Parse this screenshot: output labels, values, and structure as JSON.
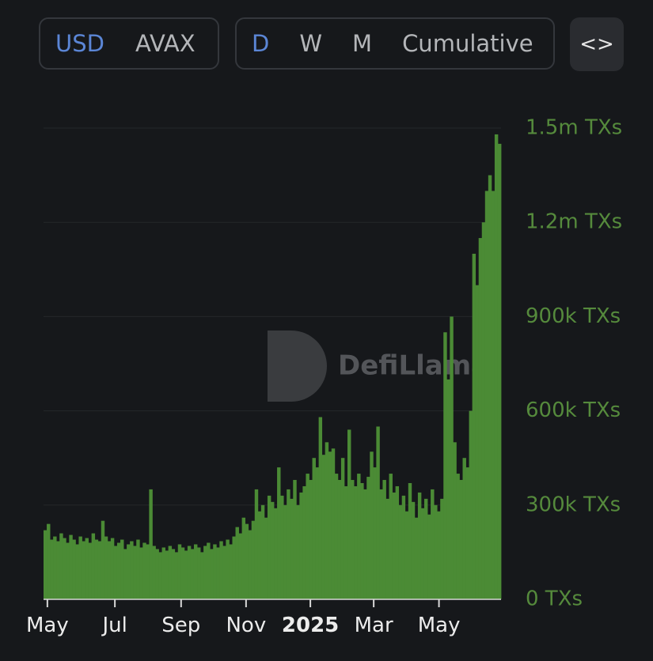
{
  "toolbar": {
    "currency": [
      "USD",
      "AVAX"
    ],
    "period": [
      "D",
      "W",
      "M",
      "Cumulative"
    ],
    "embed": "<>"
  },
  "chart_data": {
    "type": "bar",
    "watermark": "DefiLlama",
    "color": "#4b8b35",
    "grid": true,
    "values": [
      220000,
      240000,
      190000,
      200000,
      185000,
      210000,
      195000,
      180000,
      205000,
      190000,
      175000,
      200000,
      185000,
      195000,
      180000,
      210000,
      190000,
      185000,
      250000,
      200000,
      185000,
      195000,
      170000,
      180000,
      190000,
      160000,
      175000,
      185000,
      170000,
      190000,
      165000,
      180000,
      175000,
      350000,
      170000,
      160000,
      150000,
      165000,
      155000,
      170000,
      160000,
      150000,
      175000,
      165000,
      155000,
      170000,
      160000,
      175000,
      165000,
      150000,
      170000,
      180000,
      160000,
      175000,
      165000,
      185000,
      170000,
      190000,
      175000,
      200000,
      230000,
      210000,
      260000,
      240000,
      220000,
      250000,
      350000,
      280000,
      300000,
      260000,
      330000,
      310000,
      290000,
      420000,
      330000,
      300000,
      350000,
      320000,
      380000,
      300000,
      340000,
      360000,
      400000,
      380000,
      450000,
      420000,
      580000,
      460000,
      500000,
      470000,
      480000,
      400000,
      380000,
      450000,
      360000,
      540000,
      380000,
      360000,
      400000,
      370000,
      350000,
      390000,
      470000,
      420000,
      550000,
      350000,
      380000,
      320000,
      400000,
      340000,
      360000,
      300000,
      330000,
      280000,
      370000,
      310000,
      260000,
      340000,
      290000,
      320000,
      270000,
      350000,
      300000,
      280000,
      320000,
      850000,
      700000,
      900000,
      500000,
      400000,
      380000,
      450000,
      420000,
      600000,
      1100000,
      1000000,
      1150000,
      1200000,
      1300000,
      1350000,
      1300000,
      1480000,
      1450000
    ],
    "xlim": [
      0,
      143
    ],
    "xticks": [
      {
        "value": 1.2,
        "label": "May"
      },
      {
        "value": 22.3,
        "label": "Jul"
      },
      {
        "value": 43,
        "label": "Sep"
      },
      {
        "value": 63.3,
        "label": "Nov"
      },
      {
        "value": 83.4,
        "label": "2025"
      },
      {
        "value": 103.2,
        "label": "Mar"
      },
      {
        "value": 123.6,
        "label": "May"
      }
    ],
    "ylim": [
      0,
      1500000
    ],
    "yticks": [
      {
        "value": 0,
        "label": "0 TXs"
      },
      {
        "value": 300000,
        "label": "300k TXs"
      },
      {
        "value": 600000,
        "label": "600k TXs"
      },
      {
        "value": 900000,
        "label": "900k TXs"
      },
      {
        "value": 1200000,
        "label": "1.2m TXs"
      },
      {
        "value": 1500000,
        "label": "1.5m TXs"
      }
    ]
  }
}
